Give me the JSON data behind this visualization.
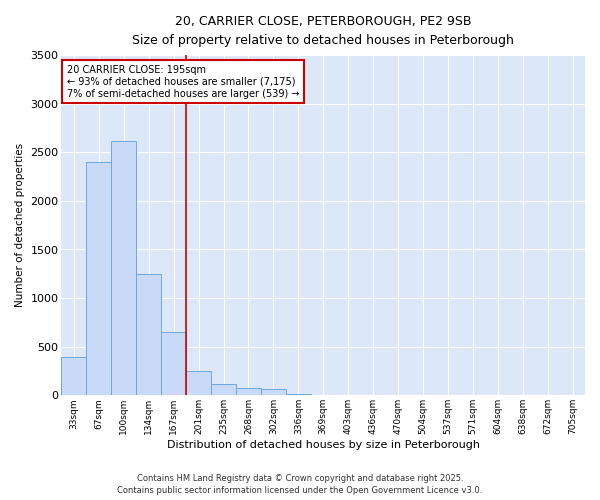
{
  "title_line1": "20, CARRIER CLOSE, PETERBOROUGH, PE2 9SB",
  "title_line2": "Size of property relative to detached houses in Peterborough",
  "xlabel": "Distribution of detached houses by size in Peterborough",
  "ylabel": "Number of detached properties",
  "categories": [
    "33sqm",
    "67sqm",
    "100sqm",
    "134sqm",
    "167sqm",
    "201sqm",
    "235sqm",
    "268sqm",
    "302sqm",
    "336sqm",
    "369sqm",
    "403sqm",
    "436sqm",
    "470sqm",
    "504sqm",
    "537sqm",
    "571sqm",
    "604sqm",
    "638sqm",
    "672sqm",
    "705sqm"
  ],
  "values": [
    390,
    2400,
    2620,
    1250,
    650,
    250,
    120,
    80,
    60,
    10,
    0,
    0,
    0,
    0,
    0,
    0,
    0,
    0,
    0,
    0,
    0
  ],
  "bar_color": "#c9daf8",
  "bar_edge_color": "#6fa8dc",
  "ylim": [
    0,
    3500
  ],
  "yticks": [
    0,
    500,
    1000,
    1500,
    2000,
    2500,
    3000,
    3500
  ],
  "ref_line_color": "#cc0000",
  "annotation_line1": "20 CARRIER CLOSE: 195sqm",
  "annotation_line2": "← 93% of detached houses are smaller (7,175)",
  "annotation_line3": "7% of semi-detached houses are larger (539) →",
  "annotation_box_color": "#cc0000",
  "footer_line1": "Contains HM Land Registry data © Crown copyright and database right 2025.",
  "footer_line2": "Contains public sector information licensed under the Open Government Licence v3.0.",
  "fig_bg_color": "#ffffff",
  "plot_bg_color": "#dce8f8",
  "grid_color": "#ffffff"
}
